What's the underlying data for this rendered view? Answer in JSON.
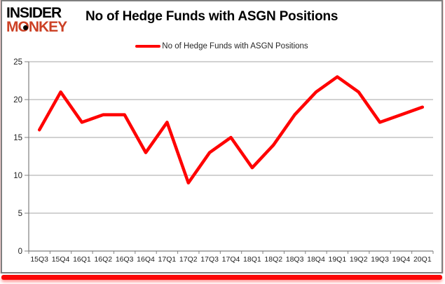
{
  "logo": {
    "line1": "INSIDER",
    "line2": "MONKEY",
    "line2_color": "#cc4125"
  },
  "header": {
    "title": "No of Hedge Funds with ASGN Positions"
  },
  "legend": {
    "label": "No of Hedge Funds with ASGN Positions",
    "swatch_color": "#ff0000"
  },
  "frame": {
    "border_color": "#7f7f7f",
    "bottom_bar_color": "#fb0707"
  },
  "chart_data": {
    "type": "line",
    "title": "No of Hedge Funds with ASGN Positions",
    "categories": [
      "15Q3",
      "15Q4",
      "16Q1",
      "16Q2",
      "16Q3",
      "16Q4",
      "17Q1",
      "17Q2",
      "17Q3",
      "17Q4",
      "18Q1",
      "18Q2",
      "18Q3",
      "18Q4",
      "19Q1",
      "19Q2",
      "19Q3",
      "19Q4",
      "20Q1"
    ],
    "values": [
      16,
      21,
      17,
      18,
      18,
      13,
      17,
      9,
      13,
      15,
      11,
      14,
      18,
      21,
      23,
      21,
      17,
      18,
      19
    ],
    "series_name": "No of Hedge Funds with ASGN Positions",
    "xlabel": "",
    "ylabel": "",
    "ylim": [
      0,
      25
    ],
    "ytick_step": 5,
    "grid": true,
    "legend_position": "top-center",
    "line_color": "#ff0000",
    "grid_color": "#a6a6a6",
    "axis_color": "#808080",
    "label_color": "#1f1f1f"
  }
}
